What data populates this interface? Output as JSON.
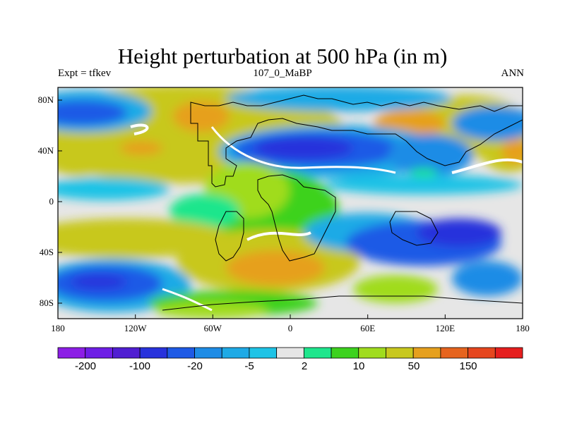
{
  "title": "Height perturbation at 500 hPa (in m)",
  "left_string": "Expt = tfkev",
  "center_string": "107_0_MaBP",
  "right_string": "ANN",
  "lon_ticks": [
    "180",
    "120W",
    "60W",
    "0",
    "60E",
    "120E",
    "180"
  ],
  "lat_ticks": [
    "80N",
    "40N",
    "0",
    "40S",
    "80S"
  ],
  "colorbar": {
    "colors": [
      "#8c1ee6",
      "#6e1ee6",
      "#501ed2",
      "#2832dc",
      "#1e5ae6",
      "#1e8ce6",
      "#1eaae6",
      "#1ec3e6",
      "#e6e6e6",
      "#1ee68c",
      "#3cd21e",
      "#a0dc1e",
      "#c8c81e",
      "#e6a01e",
      "#e6641e",
      "#e6461e",
      "#e61e1e"
    ],
    "labels": [
      "-200",
      "-100",
      "-20",
      "-5",
      "2",
      "10",
      "50",
      "150"
    ]
  },
  "colors": {
    "background": "#e6e6e6",
    "grey": "#e6e6e6",
    "white": "#ffffff",
    "deep_blue": "#2832dc",
    "blue": "#1e5ae6",
    "mid_blue": "#1e8ce6",
    "light_blue": "#1eaae6",
    "cyan": "#1ec3e6",
    "green": "#3cd21e",
    "mint": "#1ee68c",
    "yellow_green": "#a0dc1e",
    "yellow": "#c8c81e",
    "orange": "#e6a01e",
    "dark_orange": "#e6641e"
  }
}
